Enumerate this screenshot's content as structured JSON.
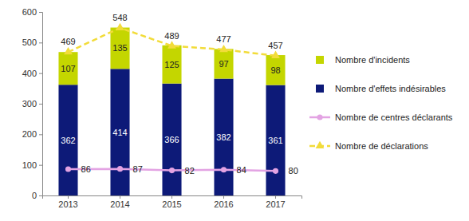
{
  "chart_data": {
    "type": "bar",
    "stacked": true,
    "data_labels": true,
    "grid": false,
    "legend": "right",
    "categories": [
      "2013",
      "2014",
      "2015",
      "2016",
      "2017"
    ],
    "ylim": [
      0,
      600
    ],
    "yticks": [
      0,
      100,
      200,
      300,
      400,
      500,
      600
    ],
    "series": [
      {
        "name": "Nombre d'incidents",
        "type": "bar",
        "color": "#c4d600",
        "values": [
          107,
          135,
          125,
          97,
          98
        ]
      },
      {
        "name": "Nombre d'effets indésirables",
        "type": "bar",
        "color": "#0d1a78",
        "values": [
          362,
          414,
          366,
          382,
          361
        ]
      },
      {
        "name": "Nombre de centres déclarants",
        "type": "line",
        "color": "#e3a3e3",
        "marker": "circle",
        "line_style": "solid",
        "values": [
          86,
          87,
          82,
          84,
          80
        ]
      },
      {
        "name": "Nombre de déclarations",
        "type": "line",
        "color": "#f2dc3a",
        "marker": "triangle",
        "line_style": "dashed",
        "values": [
          469,
          548,
          489,
          477,
          457
        ]
      }
    ]
  }
}
